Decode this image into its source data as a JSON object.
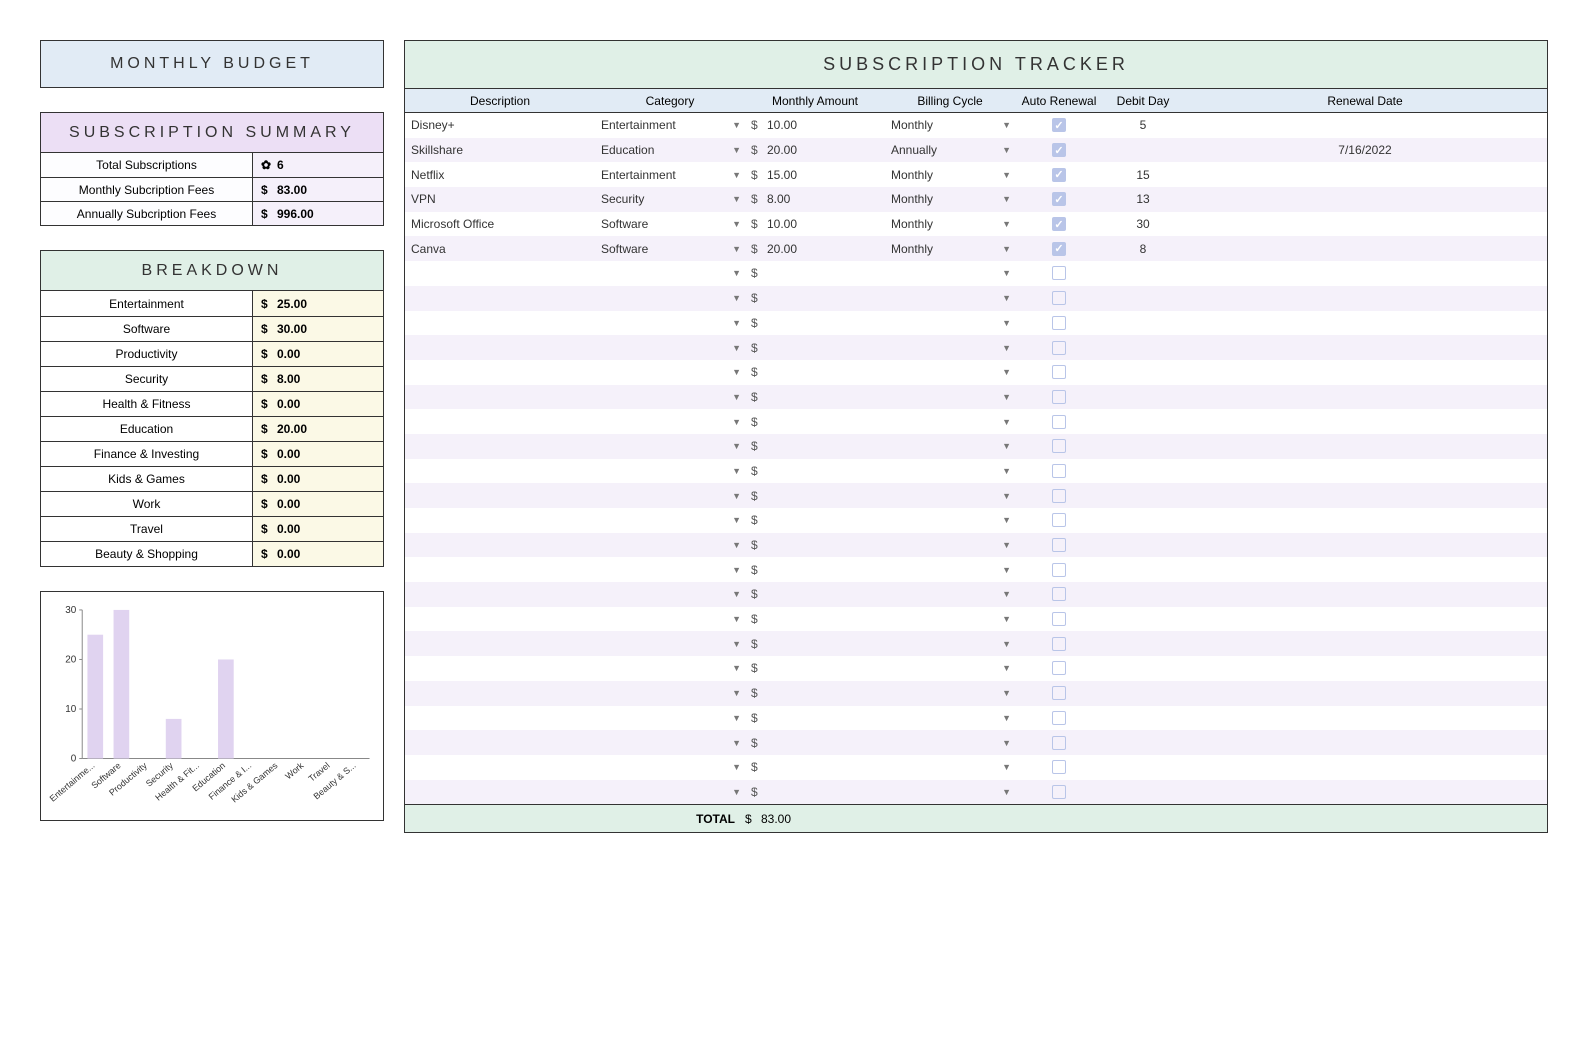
{
  "colors": {
    "header_blue": "#e1ebf5",
    "header_purple": "#ecdff5",
    "header_green": "#e0f0e7",
    "summary_val_bg": "#f5f0fa",
    "breakdown_val_bg": "#fbf9e6",
    "row_alt": "#f5f1fa",
    "checkbox": "#b9c5e8",
    "border": "#333333",
    "bar_color": "#e0d3f0"
  },
  "monthly_budget": {
    "title": "MONTHLY BUDGET"
  },
  "summary": {
    "title": "SUBSCRIPTION SUMMARY",
    "rows": [
      {
        "label": "Total Subscriptions",
        "symbol": "✿",
        "value": "6"
      },
      {
        "label": "Monthly Subcription Fees",
        "symbol": "$",
        "value": "83.00"
      },
      {
        "label": "Annually Subcription Fees",
        "symbol": "$",
        "value": "996.00"
      }
    ]
  },
  "breakdown": {
    "title": "BREAKDOWN",
    "rows": [
      {
        "label": "Entertainment",
        "value": "25.00"
      },
      {
        "label": "Software",
        "value": "30.00"
      },
      {
        "label": "Productivity",
        "value": "0.00"
      },
      {
        "label": "Security",
        "value": "8.00"
      },
      {
        "label": "Health & Fitness",
        "value": "0.00"
      },
      {
        "label": "Education",
        "value": "20.00"
      },
      {
        "label": "Finance & Investing",
        "value": "0.00"
      },
      {
        "label": "Kids & Games",
        "value": "0.00"
      },
      {
        "label": "Work",
        "value": "0.00"
      },
      {
        "label": "Travel",
        "value": "0.00"
      },
      {
        "label": "Beauty & Shopping",
        "value": "0.00"
      }
    ]
  },
  "chart": {
    "type": "bar",
    "categories": [
      "Entertainme...",
      "Software",
      "Productivity",
      "Security",
      "Health & Fit...",
      "Education",
      "Finance & I...",
      "Kids & Games",
      "Work",
      "Travel",
      "Beauty & S..."
    ],
    "values": [
      25,
      30,
      0,
      8,
      0,
      20,
      0,
      0,
      0,
      0,
      0
    ],
    "ylim": [
      0,
      30
    ],
    "ytick_step": 10,
    "bar_color": "#e0d3f0",
    "axis_color": "#888888",
    "tick_font_size": 10,
    "label_font_size": 9,
    "bar_width_ratio": 0.6
  },
  "tracker": {
    "title": "SUBSCRIPTION TRACKER",
    "columns": [
      "Description",
      "Category",
      "Monthly Amount",
      "Billing Cycle",
      "Auto Renewal",
      "Debit Day",
      "Renewal Date"
    ],
    "currency": "$",
    "rows": [
      {
        "desc": "Disney+",
        "cat": "Entertainment",
        "amount": "10.00",
        "cycle": "Monthly",
        "auto": true,
        "debit": "5",
        "renewal": ""
      },
      {
        "desc": "Skillshare",
        "cat": "Education",
        "amount": "20.00",
        "cycle": "Annually",
        "auto": true,
        "debit": "",
        "renewal": "7/16/2022"
      },
      {
        "desc": "Netflix",
        "cat": "Entertainment",
        "amount": "15.00",
        "cycle": "Monthly",
        "auto": true,
        "debit": "15",
        "renewal": ""
      },
      {
        "desc": "VPN",
        "cat": "Security",
        "amount": "8.00",
        "cycle": "Monthly",
        "auto": true,
        "debit": "13",
        "renewal": ""
      },
      {
        "desc": "Microsoft Office",
        "cat": "Software",
        "amount": "10.00",
        "cycle": "Monthly",
        "auto": true,
        "debit": "30",
        "renewal": ""
      },
      {
        "desc": "Canva",
        "cat": "Software",
        "amount": "20.00",
        "cycle": "Monthly",
        "auto": true,
        "debit": "8",
        "renewal": ""
      }
    ],
    "empty_rows": 22,
    "total_label": "TOTAL",
    "total_value": "83.00"
  }
}
